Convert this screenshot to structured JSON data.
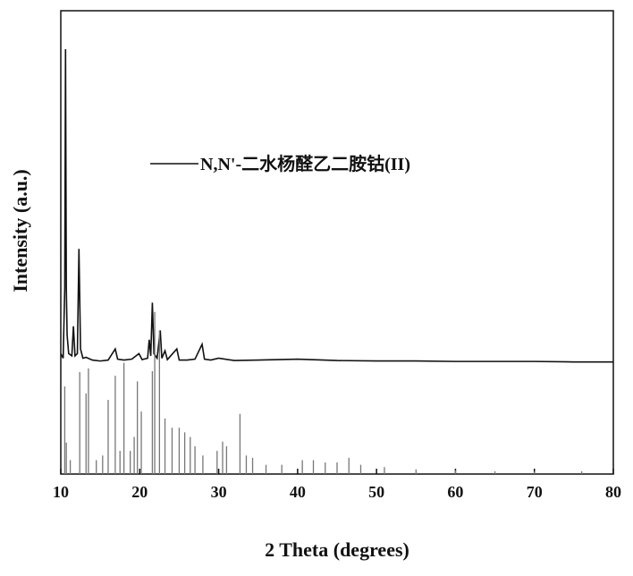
{
  "chart_data": {
    "type": "line",
    "xlabel": "2 Theta (degrees)",
    "ylabel": "Intensity (a.u.)",
    "xlim": [
      10,
      80
    ],
    "xticks": [
      10,
      20,
      30,
      40,
      50,
      60,
      70,
      80
    ],
    "ylim": [
      0,
      100
    ],
    "series": [
      {
        "name": "N,N'-二水杨醛乙二胺钴(II)",
        "color": "#111111",
        "style": "line",
        "x": [
          10.0,
          10.3,
          10.5,
          10.6,
          10.7,
          10.8,
          11.0,
          11.4,
          11.6,
          11.8,
          12.1,
          12.3,
          12.5,
          12.8,
          13.2,
          14.0,
          15.0,
          16.0,
          16.9,
          17.2,
          18.0,
          19.0,
          19.9,
          20.3,
          21.0,
          21.2,
          21.4,
          21.6,
          21.8,
          22.2,
          22.6,
          22.8,
          23.2,
          23.5,
          24.7,
          25.0,
          26.0,
          27.0,
          27.9,
          28.2,
          29.0,
          30.0,
          32.0,
          35.0,
          40.0,
          45.0,
          50.0,
          55.0,
          60.0,
          65.0,
          70.0,
          75.0,
          80.0
        ],
        "values": [
          26,
          25,
          40,
          91.7,
          40,
          30,
          26,
          25.5,
          31.9,
          25.5,
          26,
          48.6,
          27,
          25,
          25.2,
          24.6,
          24.4,
          24.6,
          27,
          24.8,
          24.6,
          24.8,
          26,
          24.7,
          25,
          29,
          25.5,
          37,
          26,
          25,
          31,
          25,
          26.6,
          24.7,
          27,
          24.6,
          24.6,
          24.8,
          28,
          24.8,
          24.6,
          25,
          24.5,
          24.6,
          24.8,
          24.5,
          24.4,
          24.4,
          24.3,
          24.3,
          24.3,
          24.2,
          24.2
        ]
      },
      {
        "color": "#777777",
        "style": "stick",
        "x": [
          10.5,
          10.7,
          11.2,
          12.4,
          13.2,
          13.5,
          14.5,
          15.3,
          16.0,
          16.9,
          17.5,
          18.0,
          18.8,
          19.3,
          19.7,
          20.2,
          21.6,
          21.9,
          22.5,
          23.2,
          24.1,
          25.0,
          25.7,
          26.4,
          27.0,
          28.0,
          29.8,
          30.5,
          31.0,
          32.7,
          33.5,
          34.3,
          36.0,
          38.0,
          40.6,
          42.0,
          43.5,
          45.0,
          46.5,
          48.0,
          51.0,
          55.0,
          60.0,
          65.0,
          70.0,
          76.0
        ],
        "values": [
          18.9,
          6.8,
          3,
          22,
          17.4,
          22.8,
          3,
          4,
          16,
          21.2,
          5,
          24,
          5,
          8,
          20,
          13.5,
          22.2,
          35,
          31,
          12,
          10,
          10,
          9,
          8,
          6,
          4,
          5,
          7,
          6,
          13,
          4,
          3.5,
          2,
          2,
          3,
          3,
          2.5,
          2.5,
          3.5,
          2,
          1.5,
          1,
          0.8,
          0.6,
          0.5,
          0.6
        ]
      }
    ]
  }
}
